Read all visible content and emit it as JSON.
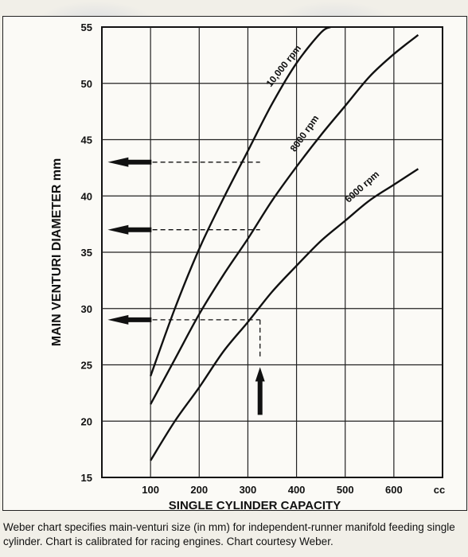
{
  "caption": "Weber chart specifies main-venturi size (in mm) for independent-runner manifold feeding single cylinder. Chart is calibrated for racing engines. Chart courtesy Weber.",
  "chart_data": {
    "type": "line",
    "xlabel": "SINGLE CYLINDER CAPACITY",
    "x_unit": "cc",
    "ylabel": "MAIN VENTURI DIAMETER mm",
    "xlim": [
      0,
      700
    ],
    "ylim": [
      15,
      55
    ],
    "x_ticks": [
      100,
      200,
      300,
      400,
      500,
      600
    ],
    "y_ticks": [
      15,
      20,
      25,
      30,
      35,
      40,
      45,
      50,
      55
    ],
    "grid": true,
    "series": [
      {
        "name": "10,000 rpm",
        "x": [
          100,
          150,
          200,
          250,
          300,
          350,
          400,
          450,
          470
        ],
        "y": [
          24,
          30,
          35.3,
          39.8,
          44,
          48.2,
          51.8,
          54.5,
          55
        ]
      },
      {
        "name": "8000 rpm",
        "x": [
          100,
          150,
          200,
          250,
          300,
          350,
          400,
          450,
          500,
          550,
          600,
          650
        ],
        "y": [
          21.5,
          25.5,
          29.5,
          33,
          36.2,
          39.6,
          42.6,
          45.4,
          48,
          50.6,
          52.6,
          54.3
        ]
      },
      {
        "name": "6000 rpm",
        "x": [
          100,
          150,
          200,
          250,
          300,
          350,
          400,
          450,
          500,
          550,
          600,
          650
        ],
        "y": [
          16.5,
          20,
          23,
          26.2,
          28.8,
          31.5,
          33.8,
          36,
          37.8,
          39.6,
          41,
          42.4
        ]
      }
    ],
    "annotations": {
      "reference_x": 325,
      "reference_y": [
        43,
        37,
        29
      ]
    }
  }
}
